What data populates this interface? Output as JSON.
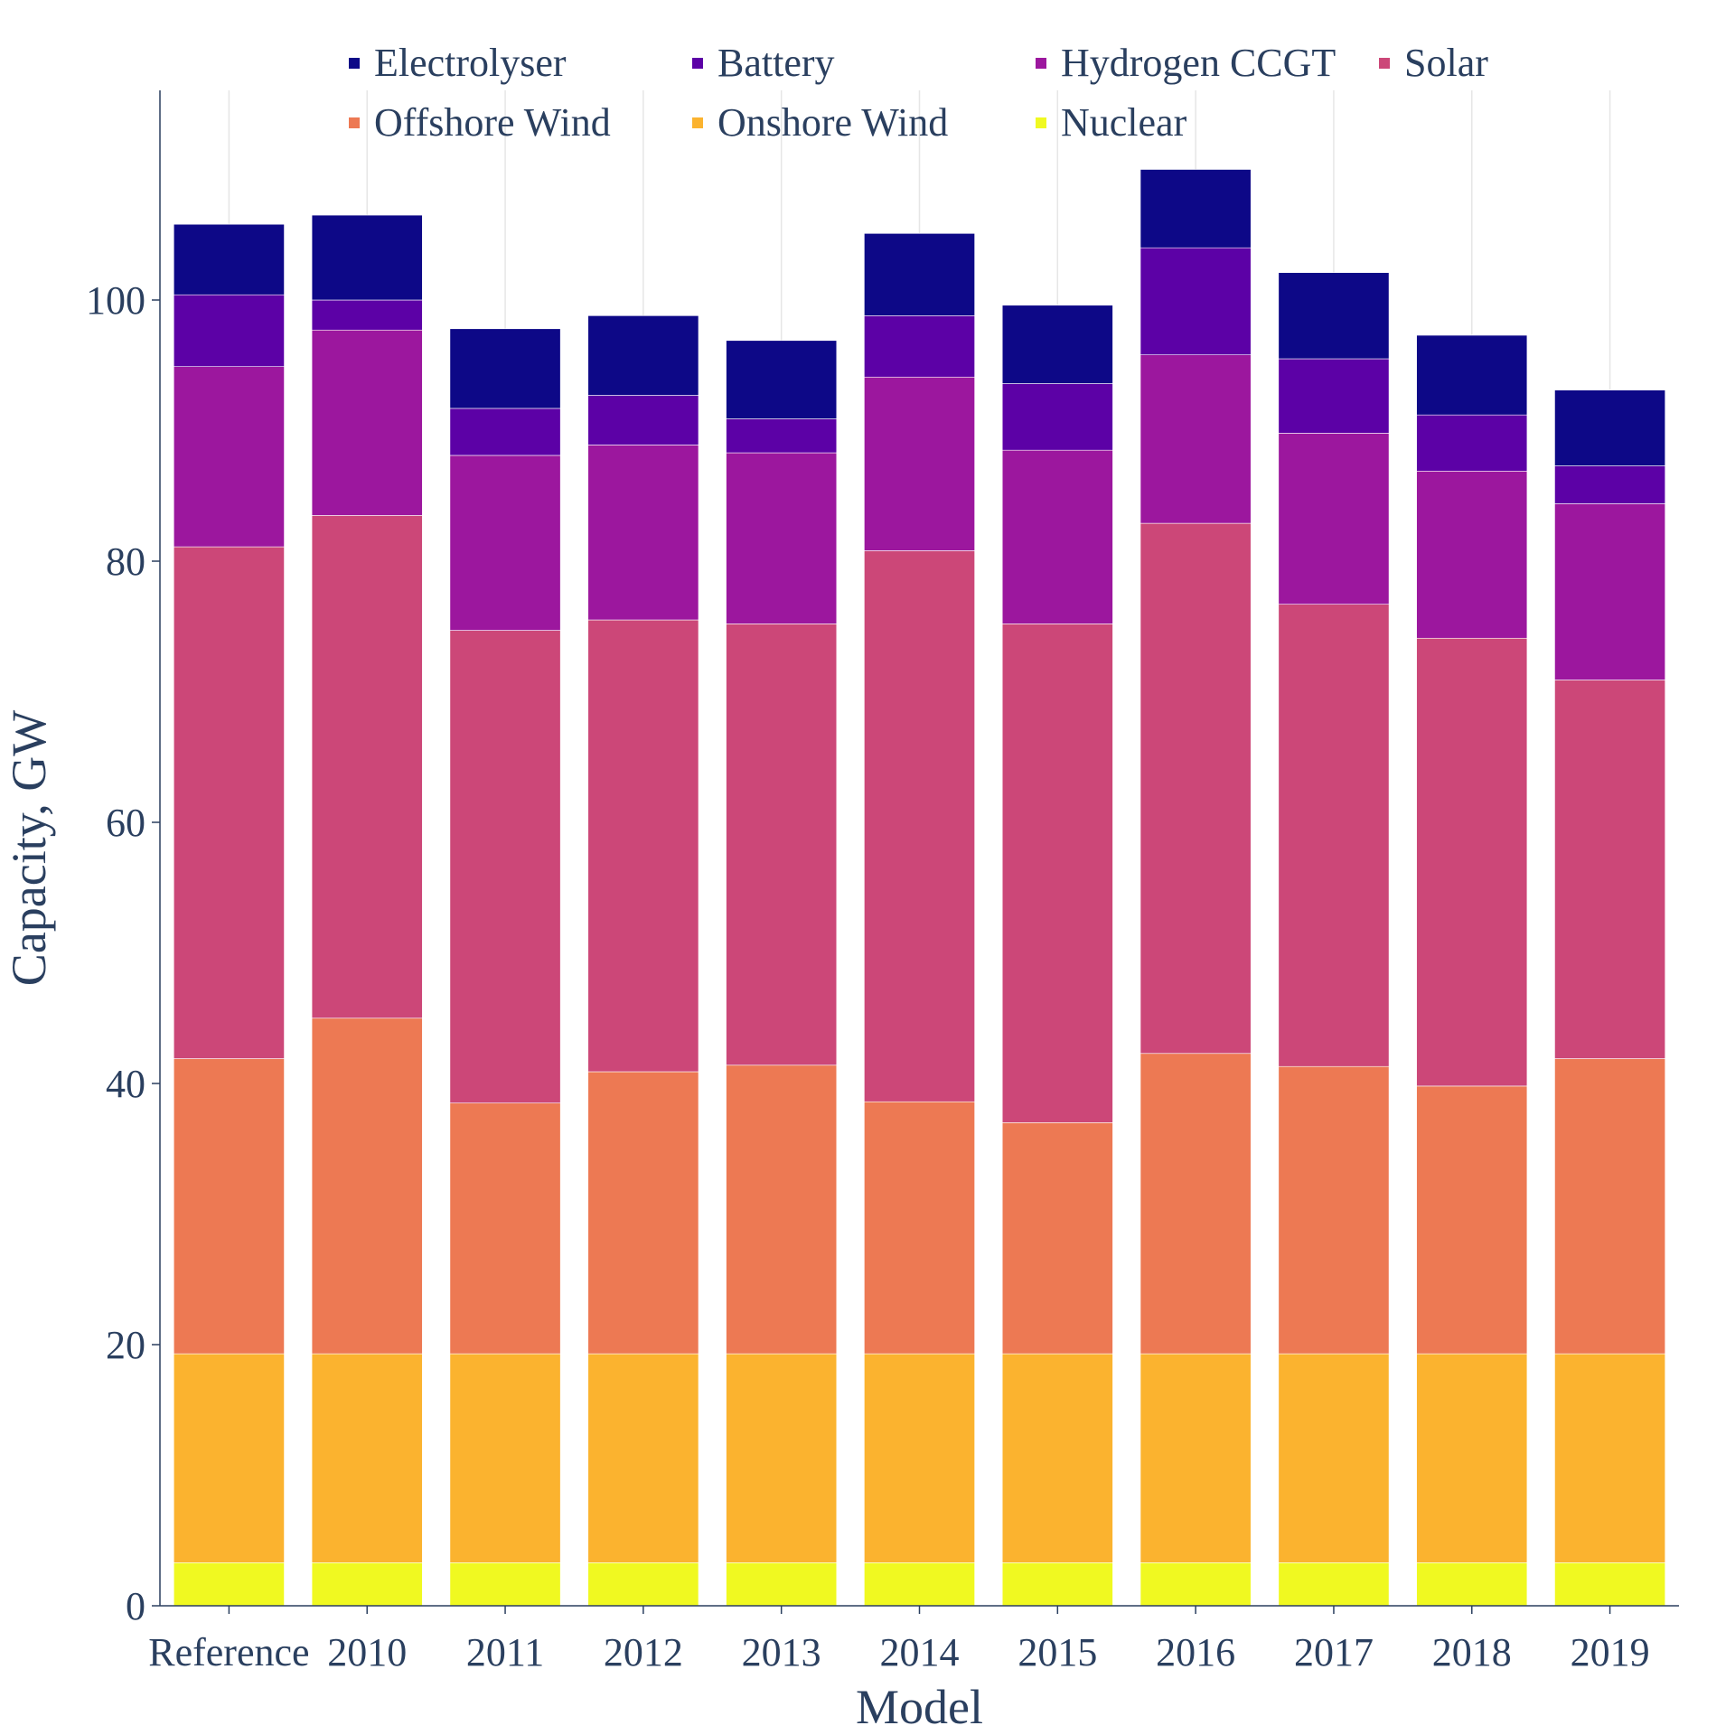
{
  "chart_data": {
    "type": "bar",
    "stacked": true,
    "categories": [
      "Reference",
      "2010",
      "2011",
      "2012",
      "2013",
      "2014",
      "2015",
      "2016",
      "2017",
      "2018",
      "2019"
    ],
    "series": [
      {
        "name": "Nuclear",
        "color": "#f0f921",
        "values": [
          3.3,
          3.3,
          3.3,
          3.3,
          3.3,
          3.3,
          3.3,
          3.3,
          3.3,
          3.3,
          3.3
        ]
      },
      {
        "name": "Onshore Wind",
        "color": "#fbb32f",
        "values": [
          16.0,
          16.0,
          16.0,
          16.0,
          16.0,
          16.0,
          16.0,
          16.0,
          16.0,
          16.0,
          16.0
        ]
      },
      {
        "name": "Offshore Wind",
        "color": "#ed7953",
        "values": [
          22.6,
          25.7,
          19.2,
          21.6,
          22.1,
          19.3,
          17.7,
          23.0,
          22.0,
          20.5,
          22.6
        ]
      },
      {
        "name": "Solar",
        "color": "#cc4778",
        "values": [
          39.2,
          38.5,
          36.2,
          34.6,
          33.8,
          42.2,
          38.2,
          40.6,
          35.4,
          34.3,
          29.0
        ]
      },
      {
        "name": "Hydrogen CCGT",
        "color": "#9c179e",
        "values": [
          13.8,
          14.2,
          13.4,
          13.4,
          13.1,
          13.3,
          13.3,
          12.9,
          13.1,
          12.8,
          13.5
        ]
      },
      {
        "name": "Battery",
        "color": "#5c01a6",
        "values": [
          5.5,
          2.3,
          3.6,
          3.8,
          2.6,
          4.7,
          5.1,
          8.2,
          5.7,
          4.3,
          2.9
        ]
      },
      {
        "name": "Electrolyser",
        "color": "#0d0887",
        "values": [
          5.4,
          6.5,
          6.1,
          6.1,
          6.0,
          6.3,
          6.0,
          6.0,
          6.6,
          6.1,
          5.8
        ]
      }
    ],
    "legend_order": [
      "Electrolyser",
      "Battery",
      "Hydrogen CCGT",
      "Solar",
      "Offshore Wind",
      "Onshore Wind",
      "Nuclear"
    ],
    "legend_placement": "top",
    "xlabel": "Model",
    "ylabel": "Capacity, GW",
    "ylim": [
      0,
      110
    ],
    "yticks": [
      0,
      20,
      40,
      60,
      80,
      100
    ],
    "grid": "vertical"
  }
}
